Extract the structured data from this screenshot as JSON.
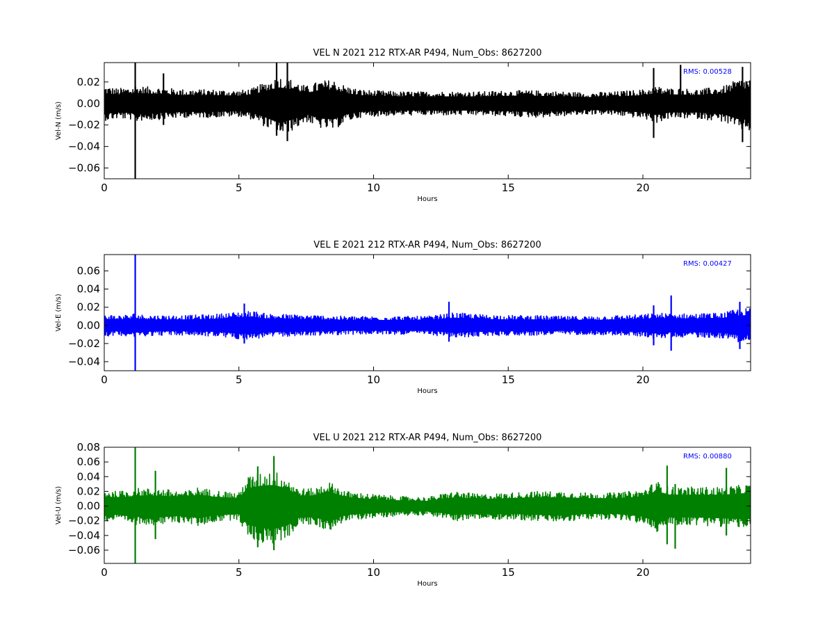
{
  "figure": {
    "background": "#ffffff"
  },
  "chart_data": [
    {
      "type": "line",
      "title": "VEL N 2021 212 RTX-AR  P494, Num_Obs: 8627200",
      "xlabel": "Hours",
      "ylabel": "Vel-N (m/s)",
      "xlim": [
        0,
        24
      ],
      "ylim": [
        -0.07,
        0.038
      ],
      "xticks": [
        0,
        5,
        10,
        15,
        20
      ],
      "yticks": [
        -0.06,
        -0.04,
        -0.02,
        0.0,
        0.02
      ],
      "ytick_labels": [
        "−0.06",
        "−0.04",
        "−0.02",
        "0.00",
        "0.02"
      ],
      "rms_label": "RMS:  0.00528",
      "rms_color": "#0000ff",
      "series": [
        {
          "color": "#000000",
          "envelope": {
            "x": [
              0,
              0.5,
              1.0,
              1.15,
              1.3,
              2.0,
              3.0,
              4.0,
              5.0,
              5.5,
              6.0,
              6.5,
              7.0,
              7.5,
              8.0,
              8.5,
              9.0,
              9.5,
              10,
              11,
              12,
              13,
              14,
              15,
              16,
              17,
              18,
              19,
              20,
              20.5,
              21,
              21.5,
              22,
              23,
              23.5,
              24
            ],
            "upper": [
              0.016,
              0.014,
              0.015,
              0.017,
              0.016,
              0.015,
              0.013,
              0.013,
              0.012,
              0.014,
              0.02,
              0.025,
              0.022,
              0.016,
              0.021,
              0.022,
              0.016,
              0.013,
              0.012,
              0.011,
              0.011,
              0.011,
              0.011,
              0.012,
              0.012,
              0.011,
              0.01,
              0.011,
              0.013,
              0.016,
              0.014,
              0.014,
              0.013,
              0.016,
              0.022,
              0.024
            ],
            "lower": [
              -0.016,
              -0.014,
              -0.015,
              -0.018,
              -0.016,
              -0.015,
              -0.013,
              -0.013,
              -0.012,
              -0.015,
              -0.022,
              -0.03,
              -0.025,
              -0.017,
              -0.023,
              -0.025,
              -0.017,
              -0.013,
              -0.012,
              -0.011,
              -0.011,
              -0.011,
              -0.011,
              -0.012,
              -0.013,
              -0.012,
              -0.01,
              -0.011,
              -0.014,
              -0.018,
              -0.014,
              -0.014,
              -0.014,
              -0.017,
              -0.024,
              -0.026
            ]
          },
          "spikes": [
            {
              "x": 1.15,
              "min": -0.07,
              "max": 0.038
            },
            {
              "x": 6.4,
              "min": -0.03,
              "max": 0.038
            },
            {
              "x": 6.8,
              "min": -0.035,
              "max": 0.038
            },
            {
              "x": 2.2,
              "min": -0.02,
              "max": 0.028
            },
            {
              "x": 21.4,
              "min": -0.01,
              "max": 0.036
            },
            {
              "x": 20.4,
              "min": -0.032,
              "max": 0.033
            },
            {
              "x": 23.7,
              "min": -0.036,
              "max": 0.034
            }
          ]
        }
      ]
    },
    {
      "type": "line",
      "title": "VEL E 2021 212 RTX-AR  P494, Num_Obs: 8627200",
      "xlabel": "Hours",
      "ylabel": "Vel-E (m/s)",
      "xlim": [
        0,
        24
      ],
      "ylim": [
        -0.05,
        0.078
      ],
      "xticks": [
        0,
        5,
        10,
        15,
        20
      ],
      "yticks": [
        -0.04,
        -0.02,
        0.0,
        0.02,
        0.04,
        0.06
      ],
      "ytick_labels": [
        "−0.04",
        "−0.02",
        "0.00",
        "0.02",
        "0.04",
        "0.06"
      ],
      "rms_label": "RMS:  0.00427",
      "rms_color": "#0000ff",
      "series": [
        {
          "color": "#0000ff",
          "envelope": {
            "x": [
              0,
              0.5,
              1.0,
              1.15,
              1.3,
              2.0,
              3.0,
              4.0,
              5.0,
              5.5,
              6.0,
              7.0,
              8.0,
              9.0,
              10,
              11,
              12,
              13,
              14,
              15,
              16,
              17,
              18,
              19,
              20,
              20.5,
              21,
              22,
              23,
              23.5,
              24
            ],
            "upper": [
              0.012,
              0.011,
              0.012,
              0.014,
              0.012,
              0.011,
              0.011,
              0.012,
              0.015,
              0.016,
              0.013,
              0.012,
              0.011,
              0.01,
              0.01,
              0.01,
              0.01,
              0.014,
              0.012,
              0.011,
              0.011,
              0.01,
              0.01,
              0.011,
              0.012,
              0.014,
              0.013,
              0.013,
              0.014,
              0.018,
              0.019
            ],
            "lower": [
              -0.012,
              -0.011,
              -0.012,
              -0.014,
              -0.012,
              -0.011,
              -0.011,
              -0.012,
              -0.015,
              -0.016,
              -0.013,
              -0.012,
              -0.011,
              -0.01,
              -0.01,
              -0.01,
              -0.01,
              -0.014,
              -0.012,
              -0.011,
              -0.011,
              -0.01,
              -0.01,
              -0.011,
              -0.012,
              -0.015,
              -0.013,
              -0.013,
              -0.014,
              -0.018,
              -0.019
            ]
          },
          "spikes": [
            {
              "x": 1.15,
              "min": -0.05,
              "max": 0.078
            },
            {
              "x": 21.05,
              "min": -0.028,
              "max": 0.033
            },
            {
              "x": 20.4,
              "min": -0.022,
              "max": 0.022
            },
            {
              "x": 5.2,
              "min": -0.02,
              "max": 0.024
            },
            {
              "x": 12.8,
              "min": -0.018,
              "max": 0.026
            },
            {
              "x": 23.6,
              "min": -0.026,
              "max": 0.026
            }
          ]
        }
      ]
    },
    {
      "type": "line",
      "title": "VEL U 2021 212 RTX-AR  P494, Num_Obs: 8627200",
      "xlabel": "Hours",
      "ylabel": "Vel-U (m/s)",
      "xlim": [
        0,
        24
      ],
      "ylim": [
        -0.078,
        0.08
      ],
      "xticks": [
        0,
        5,
        10,
        15,
        20
      ],
      "yticks": [
        -0.06,
        -0.04,
        -0.02,
        0.0,
        0.02,
        0.04,
        0.06,
        0.08
      ],
      "ytick_labels": [
        "−0.06",
        "−0.04",
        "−0.02",
        "0.00",
        "0.02",
        "0.04",
        "0.06",
        "0.08"
      ],
      "rms_label": "RMS:  0.00880",
      "rms_color": "#0000ff",
      "series": [
        {
          "color": "#008000",
          "envelope": {
            "x": [
              0,
              0.5,
              1.0,
              1.15,
              1.3,
              2.0,
              3.0,
              3.5,
              4.0,
              5.0,
              5.3,
              5.8,
              6.3,
              6.8,
              7.2,
              7.8,
              8.3,
              9.0,
              10,
              11,
              12,
              13,
              14,
              15,
              16,
              17,
              18,
              19,
              20,
              20.5,
              21,
              22,
              23,
              24
            ],
            "upper": [
              0.022,
              0.02,
              0.022,
              0.026,
              0.024,
              0.024,
              0.02,
              0.026,
              0.022,
              0.018,
              0.04,
              0.046,
              0.048,
              0.04,
              0.024,
              0.024,
              0.034,
              0.02,
              0.016,
              0.013,
              0.012,
              0.02,
              0.016,
              0.018,
              0.02,
              0.02,
              0.018,
              0.018,
              0.022,
              0.034,
              0.026,
              0.026,
              0.026,
              0.03
            ],
            "lower": [
              -0.022,
              -0.02,
              -0.024,
              -0.028,
              -0.024,
              -0.026,
              -0.022,
              -0.028,
              -0.022,
              -0.018,
              -0.042,
              -0.05,
              -0.052,
              -0.044,
              -0.026,
              -0.026,
              -0.034,
              -0.02,
              -0.016,
              -0.013,
              -0.012,
              -0.02,
              -0.018,
              -0.018,
              -0.02,
              -0.022,
              -0.018,
              -0.018,
              -0.024,
              -0.036,
              -0.026,
              -0.026,
              -0.028,
              -0.03
            ]
          },
          "spikes": [
            {
              "x": 1.15,
              "min": -0.078,
              "max": 0.08
            },
            {
              "x": 6.3,
              "min": -0.06,
              "max": 0.068
            },
            {
              "x": 5.7,
              "min": -0.056,
              "max": 0.054
            },
            {
              "x": 23.1,
              "min": -0.04,
              "max": 0.052
            },
            {
              "x": 20.9,
              "min": -0.052,
              "max": 0.055
            },
            {
              "x": 21.2,
              "min": -0.058,
              "max": 0.03
            },
            {
              "x": 1.9,
              "min": -0.045,
              "max": 0.048
            }
          ]
        }
      ]
    }
  ]
}
